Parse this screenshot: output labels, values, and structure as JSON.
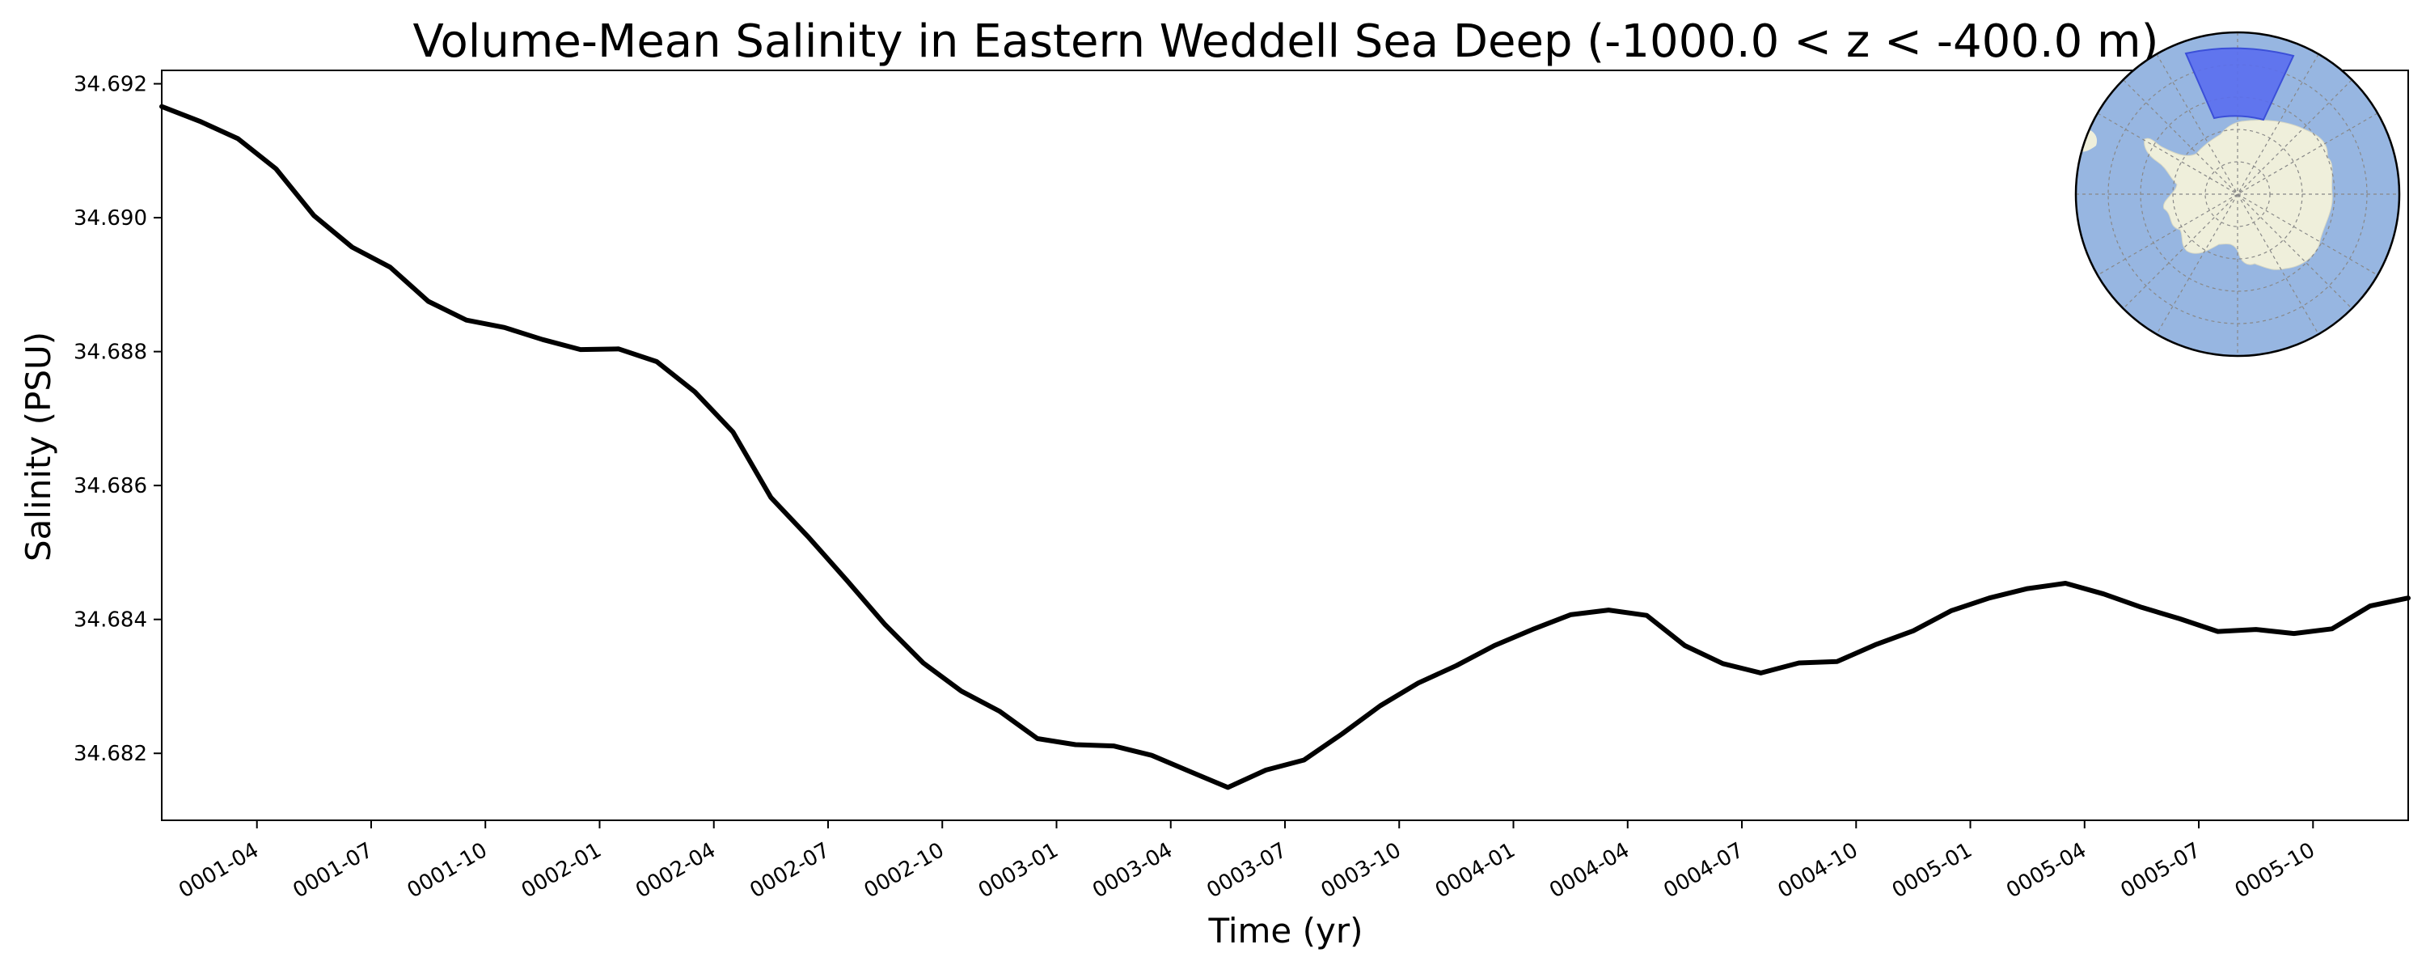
{
  "chart_data": {
    "type": "line",
    "title": "Volume-Mean Salinity in Eastern Weddell Sea Deep (-1000.0 < z < -400.0 m)",
    "xlabel": "Time (yr)",
    "ylabel": "Salinity (PSU)",
    "ylim": [
      34.681,
      34.6922
    ],
    "xlim_months": [
      0.5,
      59.5
    ],
    "grid": false,
    "line_color": "#000000",
    "yticks": [
      {
        "value": 34.682,
        "label": "34.682"
      },
      {
        "value": 34.684,
        "label": "34.684"
      },
      {
        "value": 34.686,
        "label": "34.686"
      },
      {
        "value": 34.688,
        "label": "34.688"
      },
      {
        "value": 34.69,
        "label": "34.690"
      },
      {
        "value": 34.692,
        "label": "34.692"
      }
    ],
    "xticks": [
      {
        "month": 3,
        "label": "0001-04"
      },
      {
        "month": 6,
        "label": "0001-07"
      },
      {
        "month": 9,
        "label": "0001-10"
      },
      {
        "month": 12,
        "label": "0002-01"
      },
      {
        "month": 15,
        "label": "0002-04"
      },
      {
        "month": 18,
        "label": "0002-07"
      },
      {
        "month": 21,
        "label": "0002-10"
      },
      {
        "month": 24,
        "label": "0003-01"
      },
      {
        "month": 27,
        "label": "0003-04"
      },
      {
        "month": 30,
        "label": "0003-07"
      },
      {
        "month": 33,
        "label": "0003-10"
      },
      {
        "month": 36,
        "label": "0004-01"
      },
      {
        "month": 39,
        "label": "0004-04"
      },
      {
        "month": 42,
        "label": "0004-07"
      },
      {
        "month": 45,
        "label": "0004-10"
      },
      {
        "month": 48,
        "label": "0005-01"
      },
      {
        "month": 51,
        "label": "0005-04"
      },
      {
        "month": 54,
        "label": "0005-07"
      },
      {
        "month": 57,
        "label": "0005-10"
      }
    ],
    "series": [
      {
        "x": [
          0.5,
          1.5,
          2.5,
          3.5,
          4.5,
          5.5,
          6.5,
          7.5,
          8.5,
          9.5,
          10.5,
          11.5,
          12.5,
          13.5,
          14.5,
          15.5,
          16.5,
          17.5,
          18.5,
          19.5,
          20.5,
          21.5,
          22.5,
          23.5,
          24.5,
          25.5,
          26.5,
          27.5,
          28.5,
          29.5,
          30.5,
          31.5,
          32.5,
          33.5,
          34.5,
          35.5,
          36.5,
          37.5,
          38.5,
          39.5,
          40.5,
          41.5,
          42.5,
          43.5,
          44.5,
          45.5,
          46.5,
          47.5,
          48.5,
          49.5,
          50.5,
          51.5,
          52.5,
          53.5,
          54.5,
          55.5,
          56.5,
          57.5,
          58.5,
          59.5
        ],
        "values": [
          34.69166,
          34.69144,
          34.69118,
          34.69073,
          34.69003,
          34.68956,
          34.68926,
          34.68875,
          34.68847,
          34.68836,
          34.68818,
          34.68803,
          34.68804,
          34.68785,
          34.6874,
          34.6868,
          34.68582,
          34.68522,
          34.68458,
          34.68392,
          34.68335,
          34.68293,
          34.68263,
          34.68222,
          34.68213,
          34.68211,
          34.68197,
          34.68173,
          34.68149,
          34.68175,
          34.6819,
          34.68229,
          34.68271,
          34.68305,
          34.68331,
          34.68361,
          34.68385,
          34.68407,
          34.68414,
          34.68406,
          34.68361,
          34.68334,
          34.6832,
          34.68335,
          34.68337,
          34.68362,
          34.68383,
          34.68413,
          34.68432,
          34.68446,
          34.68454,
          34.68438,
          34.68418,
          34.68401,
          34.68382,
          34.68385,
          34.68379,
          34.68386,
          34.6842,
          34.68432
        ]
      }
    ]
  },
  "inset_map": {
    "ocean_color": "#97b6e1",
    "land_color": "#efefdb",
    "region_color": "#5a6ef0"
  }
}
